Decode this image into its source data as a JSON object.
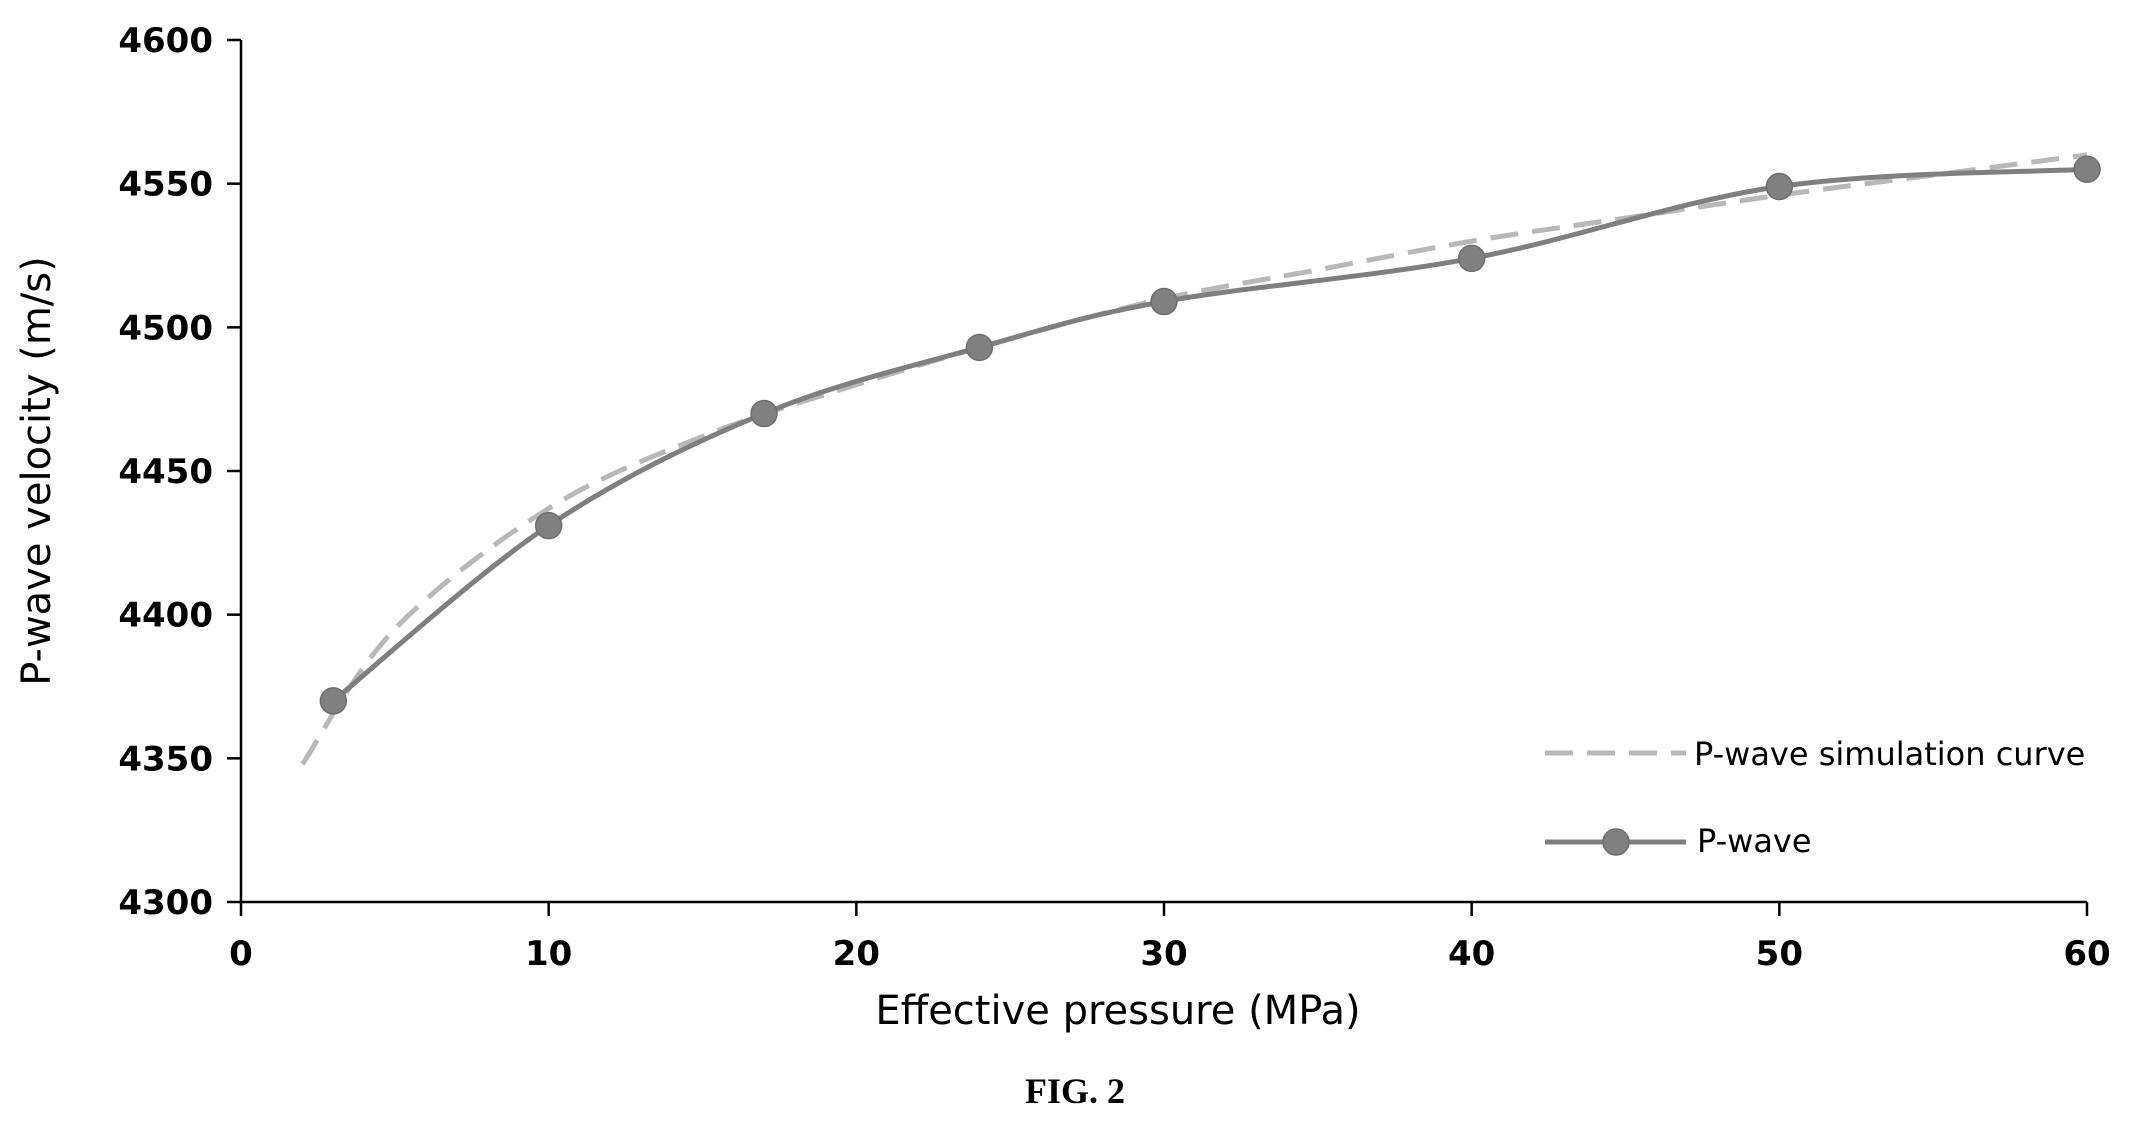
{
  "chart_data": {
    "type": "line",
    "xlabel": "Effective pressure (MPa)",
    "ylabel": "P-wave velocity (m/s)",
    "xlim": [
      0,
      60
    ],
    "ylim": [
      4300,
      4600
    ],
    "x_ticks": [
      0,
      10,
      20,
      30,
      40,
      50,
      60
    ],
    "y_ticks": [
      4300,
      4350,
      4400,
      4450,
      4500,
      4550,
      4600
    ],
    "grid": false,
    "legend_position": "bottom-right",
    "series": [
      {
        "name": "P-wave simulation curve",
        "style": "dashed",
        "color": "#b8b8b8",
        "x": [
          2,
          5,
          10,
          15,
          20,
          25,
          30,
          35,
          40,
          45,
          50,
          55,
          60
        ],
        "y": [
          4348,
          4395,
          4437,
          4462,
          4480,
          4496,
          4510,
          4520,
          4530,
          4538,
          4546,
          4553,
          4560
        ]
      },
      {
        "name": "P-wave",
        "style": "solid-with-markers",
        "color": "#7f7f7f",
        "x": [
          3,
          10,
          17,
          24,
          30,
          40,
          50,
          60
        ],
        "y": [
          4370,
          4431,
          4470,
          4493,
          4509,
          4524,
          4549,
          4555
        ]
      }
    ]
  },
  "caption": "FIG. 2"
}
